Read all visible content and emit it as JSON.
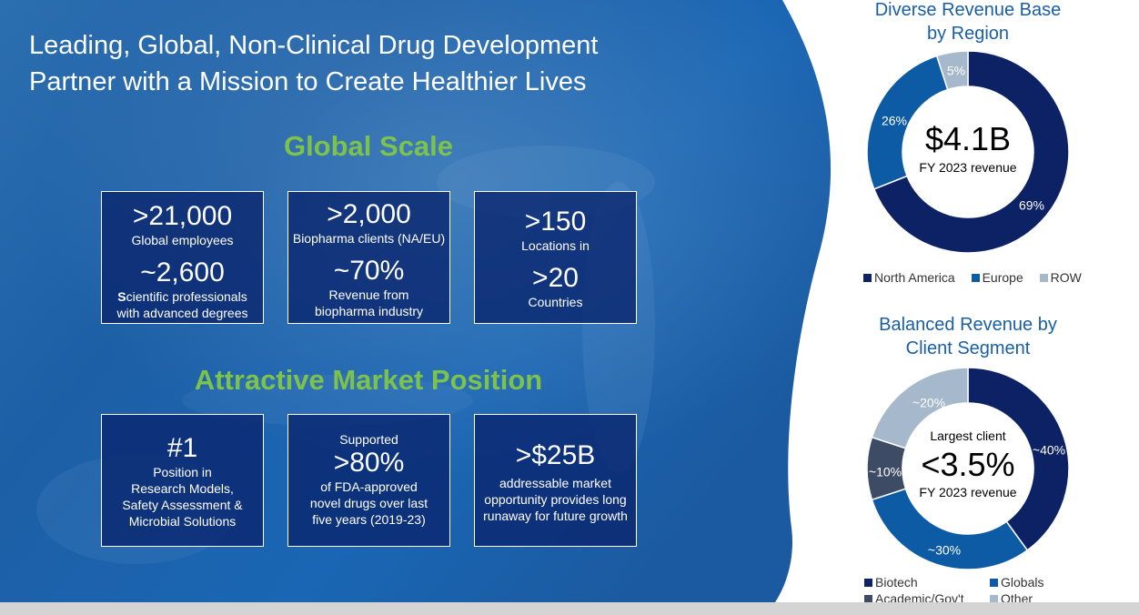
{
  "headline": {
    "line1": "Leading, Global, Non-Clinical Drug Development",
    "line2": "Partner with a Mission to Create Healthier Lives"
  },
  "global_scale": {
    "title": "Global Scale",
    "boxes": [
      {
        "big1": ">21,000",
        "label1": "Global employees",
        "big2": "~2,600",
        "label2_bold": "S",
        "label2_rest": "cientific professionals",
        "label2_line2": "with advanced degrees"
      },
      {
        "big1": ">2,000",
        "label1": "Biopharma clients (NA/EU)",
        "big2": "~70%",
        "label2": "Revenue from",
        "label2_line2": "biopharma industry"
      },
      {
        "big1": ">150",
        "label1": "Locations in",
        "big2": ">20",
        "label2": "Countries"
      }
    ]
  },
  "market_position": {
    "title": "Attractive Market Position",
    "boxes": [
      {
        "big": "#1",
        "lines": [
          "Position in",
          "Research Models,",
          "Safety Assessment &",
          "Microbial Solutions"
        ]
      },
      {
        "pre": "Supported",
        "big": ">80%",
        "lines": [
          "of FDA-approved",
          "novel drugs over last",
          "five years (2019-23)"
        ]
      },
      {
        "big": ">$25B",
        "lines": [
          "addressable market",
          "opportunity provides long",
          "runaway for future growth"
        ]
      }
    ]
  },
  "colors": {
    "navy": "#0d2264",
    "blue": "#0d5aa5",
    "light": "#a6b8cc",
    "slate": "#3e4b64",
    "green": "#7dc24a",
    "title_blue": "#1a5fa3"
  },
  "chart_data": [
    {
      "type": "pie",
      "title": "Diverse Revenue Base by Region",
      "title_line1": "Diverse Revenue Base",
      "title_line2": "by Region",
      "center_value": "$4.1B",
      "center_label": "FY 2023 revenue",
      "slices": [
        {
          "name": "North America",
          "value": 69,
          "label": "69%",
          "color": "#0d2264"
        },
        {
          "name": "Europe",
          "value": 26,
          "label": "26%",
          "color": "#0d5aa5"
        },
        {
          "name": "ROW",
          "value": 5,
          "label": "5%",
          "color": "#a6b8cc"
        }
      ],
      "legend": [
        "North America",
        "Europe",
        "ROW"
      ]
    },
    {
      "type": "pie",
      "title": "Balanced Revenue by Client Segment",
      "title_line1": "Balanced Revenue by",
      "title_line2": "Client Segment",
      "center_pre": "Largest client",
      "center_value": "<3.5%",
      "center_label": "FY 2023 revenue",
      "slices": [
        {
          "name": "Biotech",
          "value": 40,
          "label": "~40%",
          "color": "#0d2264"
        },
        {
          "name": "Globals",
          "value": 30,
          "label": "~30%",
          "color": "#0d5aa5"
        },
        {
          "name": "Academic/Gov't",
          "value": 10,
          "label": "~10%",
          "color": "#3e4b64"
        },
        {
          "name": "Other",
          "value": 20,
          "label": "~20%",
          "color": "#a6b8cc"
        }
      ],
      "legend": [
        "Biotech",
        "Globals",
        "Academic/Gov't",
        "Other"
      ]
    }
  ]
}
